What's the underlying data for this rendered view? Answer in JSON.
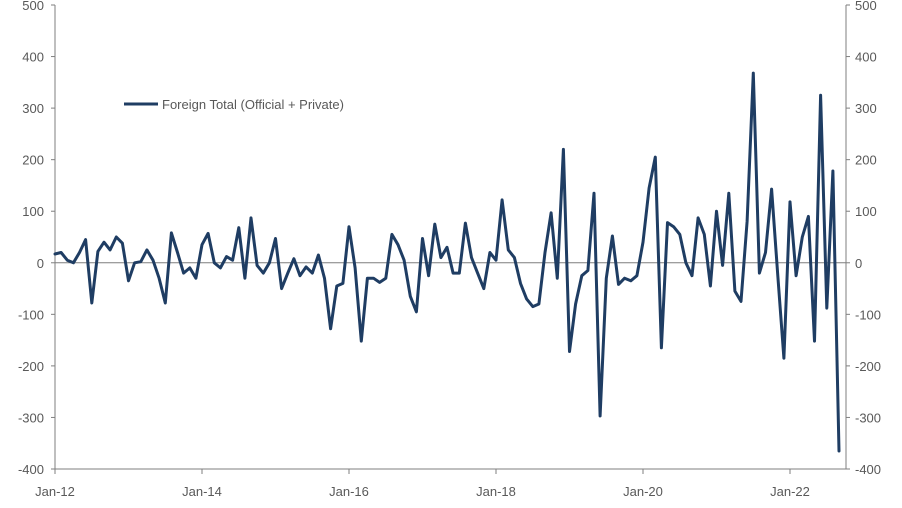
{
  "chart_data": {
    "type": "line",
    "title": "",
    "xlabel": "",
    "ylabel": "",
    "ylim": [
      -400,
      500
    ],
    "yticks": [
      -400,
      -300,
      -200,
      -100,
      0,
      100,
      200,
      300,
      400,
      500
    ],
    "xticks": [
      "Jan-12",
      "Jan-14",
      "Jan-16",
      "Jan-18",
      "Jan-20",
      "Jan-22"
    ],
    "legend_position": "upper-left",
    "grid": false,
    "colors": {
      "series": "#1f3d63",
      "axis": "#7f7f7f",
      "text": "#595959"
    },
    "series": [
      {
        "name": "Foreign Total (Official + Private)",
        "x_start": "Jan-12",
        "frequency": "monthly",
        "values": [
          17,
          20,
          5,
          0,
          20,
          45,
          -78,
          22,
          40,
          25,
          50,
          38,
          -35,
          0,
          2,
          25,
          5,
          -30,
          -78,
          58,
          20,
          -20,
          -10,
          -30,
          35,
          57,
          0,
          -10,
          12,
          5,
          68,
          -30,
          87,
          -5,
          -20,
          0,
          47,
          -50,
          -20,
          8,
          -25,
          -8,
          -20,
          15,
          -30,
          -128,
          -45,
          -40,
          70,
          -10,
          -152,
          -30,
          -30,
          -38,
          -30,
          55,
          35,
          5,
          -65,
          -95,
          47,
          -25,
          75,
          10,
          30,
          -20,
          -20,
          77,
          10,
          -20,
          -50,
          20,
          5,
          122,
          25,
          10,
          -40,
          -70,
          -85,
          -80,
          20,
          97,
          -30,
          220,
          -172,
          -80,
          -25,
          -15,
          135,
          -297,
          -30,
          52,
          -42,
          -30,
          -35,
          -25,
          40,
          145,
          205,
          -165,
          78,
          70,
          55,
          0,
          -25,
          87,
          55,
          -45,
          100,
          -5,
          135,
          -55,
          -75,
          80,
          368,
          -20,
          20,
          143,
          -25,
          -185,
          118,
          -25,
          50,
          90,
          -152,
          325,
          -88,
          178,
          -365
        ]
      }
    ]
  }
}
